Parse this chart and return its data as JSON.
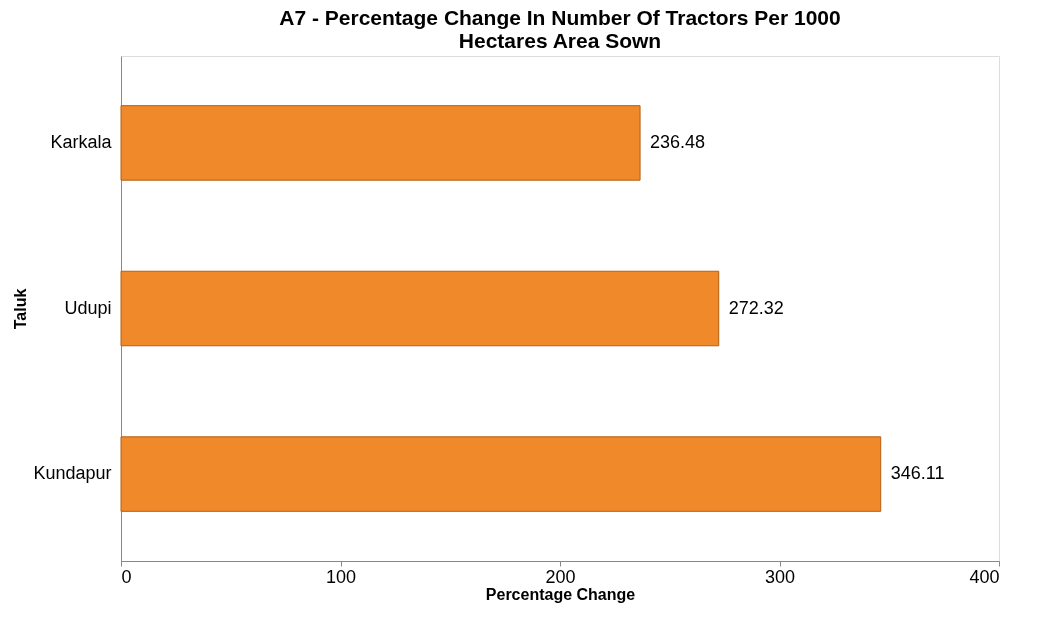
{
  "chart_data": {
    "type": "bar",
    "orientation": "horizontal",
    "title": "A7 - Percentage Change In Number Of Tractors Per 1000 Hectares Area Sown",
    "xlabel": "Percentage Change",
    "ylabel": "Taluk",
    "categories": [
      "Karkala",
      "Udupi",
      "Kundapur"
    ],
    "values": [
      236.48,
      272.32,
      346.11
    ],
    "color": "#f0892a",
    "xlim": [
      0,
      400
    ],
    "xticks": [
      0,
      100,
      200,
      300,
      400
    ],
    "grid": false,
    "data_labels": true
  }
}
